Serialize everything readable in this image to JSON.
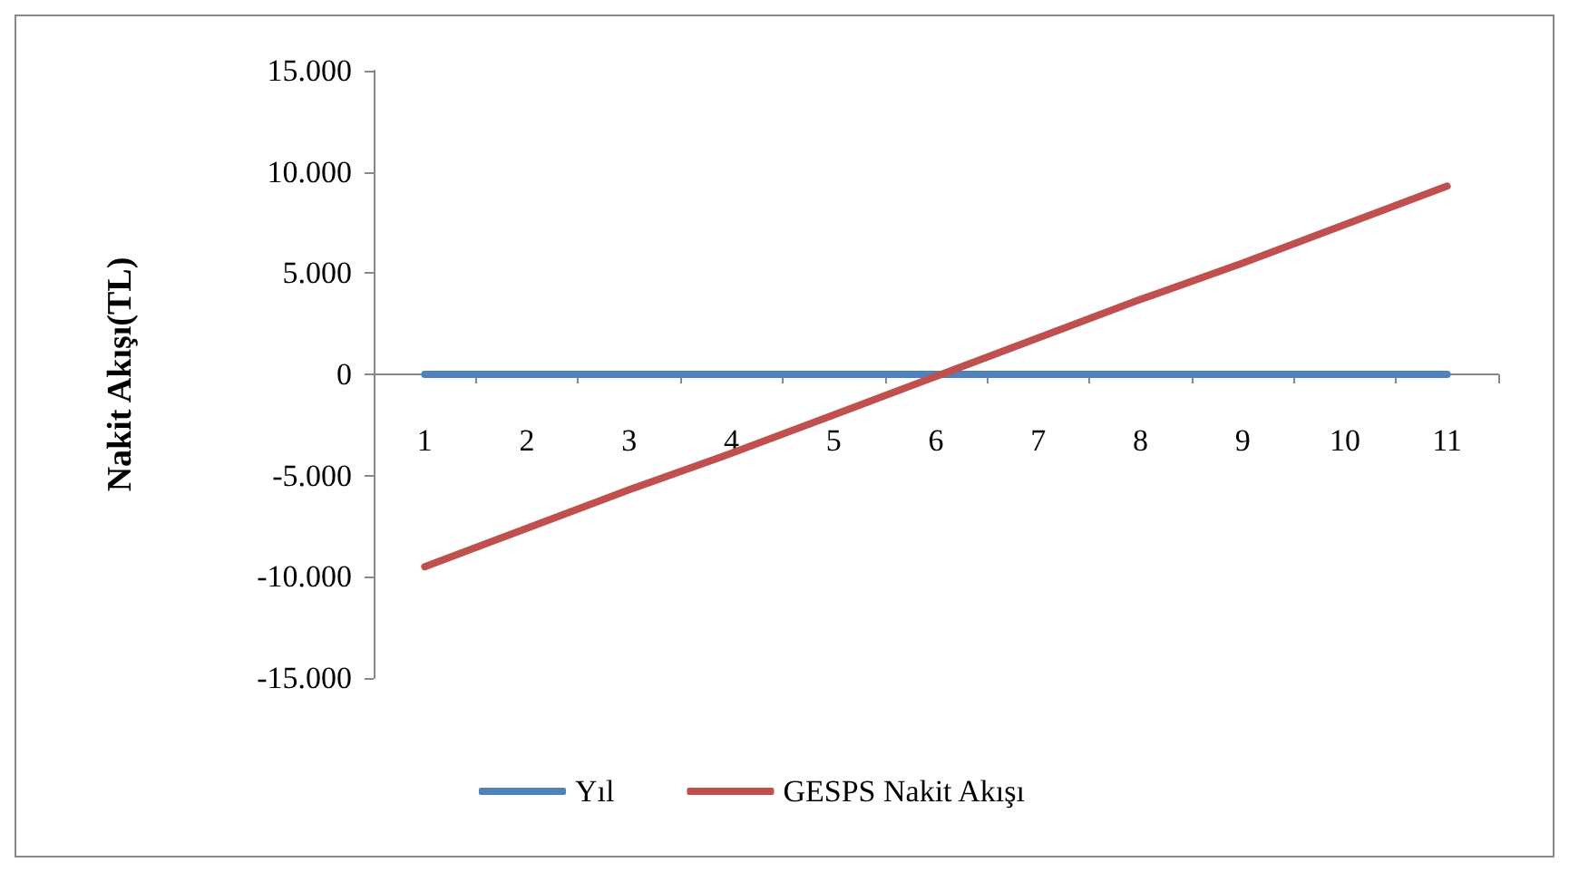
{
  "chart_data": {
    "type": "line",
    "ylabel": "Nakit Akışı(TL)",
    "categories": [
      "1",
      "2",
      "3",
      "4",
      "5",
      "6",
      "7",
      "8",
      "9",
      "10",
      "11"
    ],
    "series": [
      {
        "name": "Yıl",
        "color": "#4f81bd",
        "values": [
          0,
          0,
          0,
          0,
          0,
          0,
          0,
          0,
          0,
          0,
          0
        ]
      },
      {
        "name": "GESPS Nakit Akışı",
        "color": "#c0504d",
        "values": [
          -9500,
          -7600,
          -5700,
          -3900,
          -2000,
          -100,
          1800,
          3700,
          5500,
          7400,
          9300
        ]
      }
    ],
    "ylim": [
      -15000,
      15000
    ],
    "yticks": [
      {
        "value": -15000,
        "label": "-15.000"
      },
      {
        "value": -10000,
        "label": "-10.000"
      },
      {
        "value": -5000,
        "label": "-5.000"
      },
      {
        "value": 0,
        "label": "0"
      },
      {
        "value": 5000,
        "label": "5.000"
      },
      {
        "value": 10000,
        "label": "10.000"
      },
      {
        "value": 15000,
        "label": "15.000"
      }
    ],
    "grid": false,
    "legend": "bottom",
    "marker": "none",
    "line_style": "solid"
  }
}
